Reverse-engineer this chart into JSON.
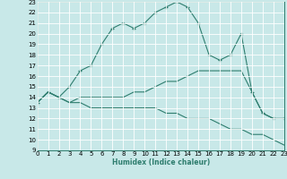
{
  "xlabel": "Humidex (Indice chaleur)",
  "bg_color": "#c8e8e8",
  "grid_color": "#ffffff",
  "line_color": "#2e7d6e",
  "xlim": [
    0,
    23
  ],
  "ylim": [
    9,
    23
  ],
  "xticks": [
    0,
    1,
    2,
    3,
    4,
    5,
    6,
    7,
    8,
    9,
    10,
    11,
    12,
    13,
    14,
    15,
    16,
    17,
    18,
    19,
    20,
    21,
    22,
    23
  ],
  "yticks": [
    9,
    10,
    11,
    12,
    13,
    14,
    15,
    16,
    17,
    18,
    19,
    20,
    21,
    22,
    23
  ],
  "line1_x": [
    0,
    1,
    2,
    3,
    4,
    5,
    6,
    7,
    8,
    9,
    10,
    11,
    12,
    13,
    14,
    15,
    16,
    17,
    18,
    19,
    20,
    21,
    22,
    23
  ],
  "line1_y": [
    13.5,
    14.5,
    14.0,
    15.0,
    16.5,
    17.0,
    19.0,
    20.5,
    21.0,
    20.5,
    21.0,
    22.0,
    22.5,
    23.0,
    22.5,
    21.0,
    18.0,
    17.5,
    18.0,
    20.0,
    14.5,
    12.5,
    12.0,
    12.0
  ],
  "line2_x": [
    0,
    1,
    2,
    3,
    4,
    5,
    6,
    7,
    8,
    9,
    10,
    11,
    12,
    13,
    14,
    15,
    16,
    17,
    18,
    19,
    20,
    21,
    22,
    23
  ],
  "line2_y": [
    13.5,
    14.5,
    14.0,
    13.5,
    14.0,
    14.0,
    14.0,
    14.0,
    14.0,
    14.5,
    14.5,
    15.0,
    15.5,
    15.5,
    16.0,
    16.5,
    16.5,
    16.5,
    16.5,
    16.5,
    14.5,
    12.5,
    12.0,
    12.0
  ],
  "line3_x": [
    0,
    1,
    2,
    3,
    4,
    5,
    6,
    7,
    8,
    9,
    10,
    11,
    12,
    13,
    14,
    15,
    16,
    17,
    18,
    19,
    20,
    21,
    22,
    23
  ],
  "line3_y": [
    13.5,
    14.5,
    14.0,
    13.5,
    13.5,
    13.0,
    13.0,
    13.0,
    13.0,
    13.0,
    13.0,
    13.0,
    12.5,
    12.5,
    12.0,
    12.0,
    12.0,
    11.5,
    11.0,
    11.0,
    10.5,
    10.5,
    10.0,
    9.5
  ]
}
